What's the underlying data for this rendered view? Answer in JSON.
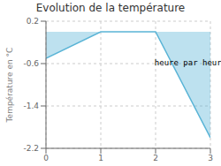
{
  "chart_data": {
    "type": "area",
    "title": "Evolution de la température",
    "ylabel": "Température en °C",
    "x": [
      0,
      1,
      2,
      3
    ],
    "values": [
      -0.5,
      0.0,
      0.0,
      -2.0
    ],
    "color": "#5ab4d6",
    "xlim": [
      0,
      3
    ],
    "ylim": [
      -2.2,
      0.2
    ],
    "xticks": [
      0,
      1,
      2,
      3
    ],
    "yticks": [
      0.2,
      -0.6,
      -1.4,
      -2.2
    ],
    "grid": true,
    "annotations": [
      {
        "text": "heure par heure",
        "x": 1.9,
        "y": -0.45
      }
    ]
  }
}
